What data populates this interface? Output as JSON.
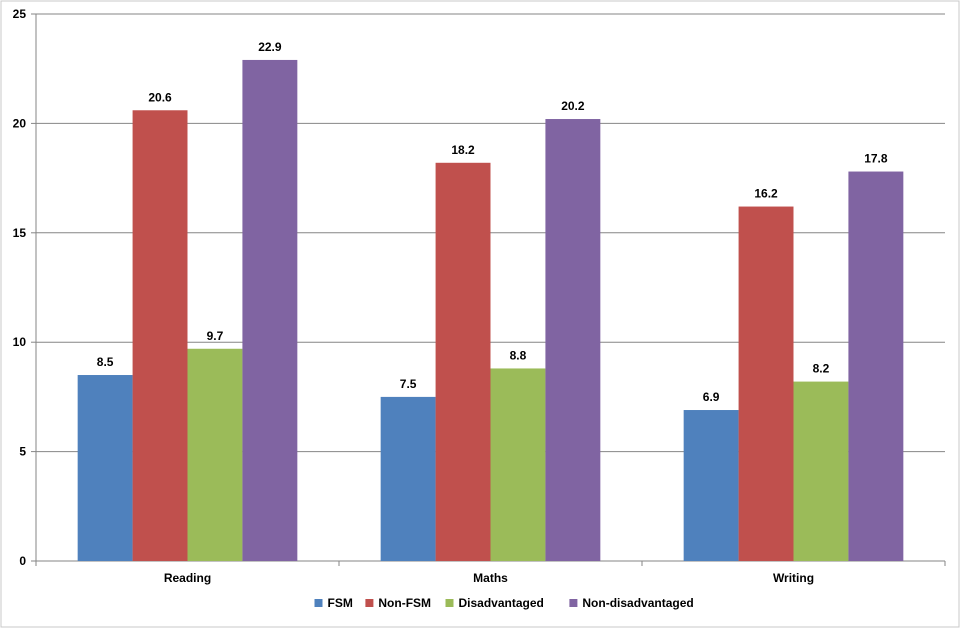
{
  "chart_data": {
    "type": "bar",
    "title": "",
    "xlabel": "",
    "ylabel": "",
    "categories": [
      "Reading",
      "Maths",
      "Writing"
    ],
    "ylim": [
      0,
      25
    ],
    "yticks": [
      0,
      5,
      10,
      15,
      20,
      25
    ],
    "grid": true,
    "legend_position": "bottom",
    "series": [
      {
        "name": "FSM",
        "color": "#4F81BD",
        "values": [
          8.5,
          7.5,
          6.9
        ]
      },
      {
        "name": "Non-FSM",
        "color": "#C0504D",
        "values": [
          20.6,
          18.2,
          16.2
        ]
      },
      {
        "name": "Disadvantaged",
        "color": "#9BBB59",
        "values": [
          9.7,
          8.8,
          8.2
        ]
      },
      {
        "name": "Non-disadvantaged",
        "color": "#8064A2",
        "values": [
          22.9,
          20.2,
          17.8
        ]
      }
    ]
  }
}
